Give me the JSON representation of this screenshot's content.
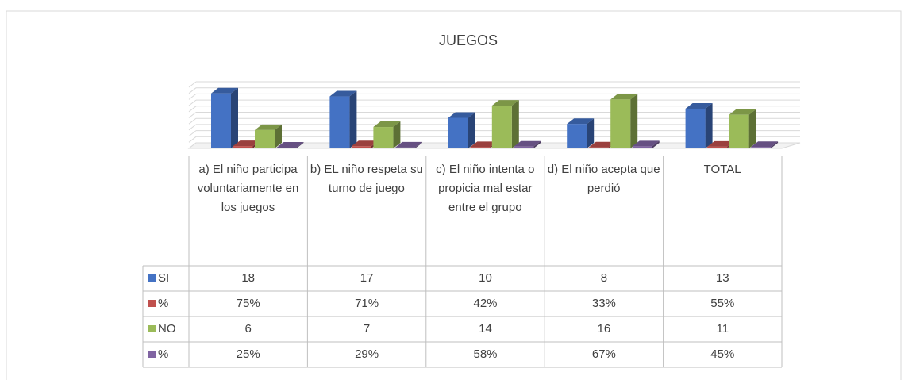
{
  "chart_data": {
    "type": "bar3d",
    "title": "JUEGOS",
    "categories": [
      "a) El niño participa voluntariamente en los juegos",
      "b) EL niño respeta su turno de juego",
      "c) El niño intenta o propicia mal estar entre el grupo",
      "d) El niño acepta que perdió",
      "TOTAL"
    ],
    "series": [
      {
        "name": "SI",
        "color": "#4472c4",
        "values": [
          18,
          17,
          10,
          8,
          13
        ]
      },
      {
        "name": "%",
        "color": "#c0504d",
        "values": [
          0.75,
          0.71,
          0.42,
          0.33,
          0.55
        ],
        "value_labels": [
          "75%",
          "71%",
          "42%",
          "33%",
          "55%"
        ]
      },
      {
        "name": "NO",
        "color": "#9bbb59",
        "values": [
          6,
          7,
          14,
          16,
          11
        ]
      },
      {
        "name": "%",
        "color": "#8064a2",
        "values": [
          0.25,
          0.29,
          0.58,
          0.67,
          0.45
        ],
        "value_labels": [
          "25%",
          "29%",
          "58%",
          "67%",
          "45%"
        ]
      }
    ],
    "ylim": [
      0,
      20
    ],
    "yticks": [
      0,
      2,
      4,
      6,
      8,
      10,
      12,
      14,
      16,
      18,
      20
    ],
    "grid": true,
    "data_table": true
  }
}
